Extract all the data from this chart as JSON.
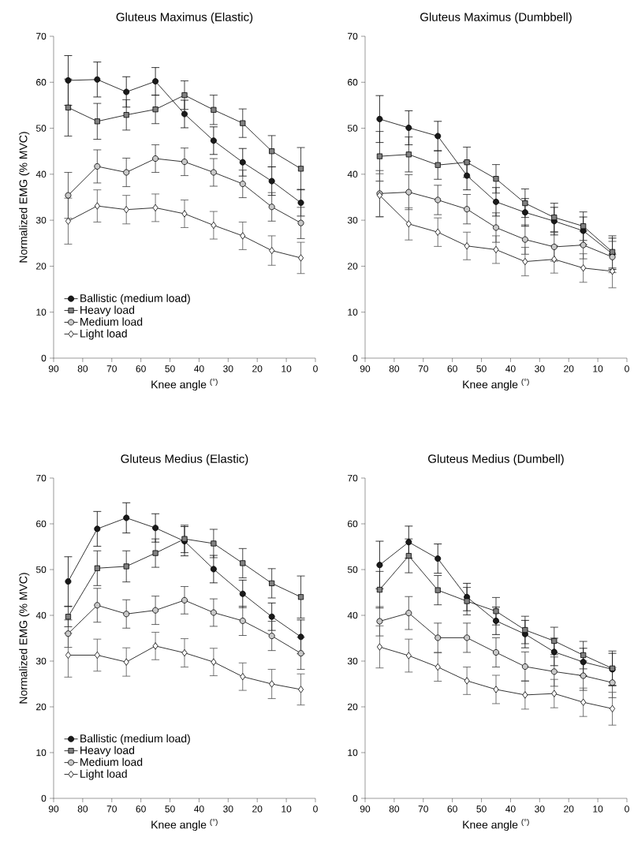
{
  "chart_data": [
    {
      "type": "line",
      "title": "Gluteus Maximus (Elastic)",
      "xlabel": "Knee angle $^{(°)}$",
      "ylabel": "Normalized EMG (% MVC)",
      "x": [
        85,
        75,
        65,
        55,
        45,
        35,
        25,
        15,
        5
      ],
      "xlim": [
        90,
        0
      ],
      "xticks": [
        90,
        80,
        70,
        60,
        50,
        40,
        30,
        20,
        10,
        0
      ],
      "ylim": [
        0,
        70
      ],
      "yticks": [
        0,
        10,
        20,
        30,
        40,
        50,
        60,
        70
      ],
      "legend": "bottom left",
      "series": [
        {
          "name": "Ballistic (medium load)",
          "color": "#1a1a1a",
          "marker": "circle",
          "values": [
            60.4,
            60.6,
            57.9,
            60.2,
            53.1,
            47.3,
            42.6,
            38.5,
            33.8
          ],
          "errors": [
            5.4,
            3.8,
            3.3,
            3.0,
            3.0,
            3.0,
            3.0,
            3.1,
            2.9
          ]
        },
        {
          "name": "Heavy load",
          "color": "#808080",
          "marker": "square",
          "values": [
            54.5,
            51.5,
            52.9,
            54.1,
            57.2,
            54.0,
            51.1,
            45.0,
            41.2
          ],
          "errors": [
            6.2,
            3.9,
            3.3,
            3.1,
            3.1,
            3.2,
            3.1,
            3.4,
            4.6
          ]
        },
        {
          "name": "Medium load",
          "color": "#c8c8c8",
          "marker": "circle",
          "values": [
            35.4,
            41.7,
            40.4,
            43.4,
            42.7,
            40.4,
            37.9,
            32.9,
            29.4
          ],
          "errors": [
            5.0,
            3.6,
            3.1,
            3.0,
            3.0,
            3.0,
            3.0,
            3.1,
            3.4
          ]
        },
        {
          "name": "Light load",
          "color": "#ffffff",
          "marker": "diamond",
          "values": [
            29.8,
            33.1,
            32.3,
            32.7,
            31.4,
            28.9,
            26.6,
            23.4,
            21.8
          ],
          "errors": [
            5.0,
            3.5,
            3.1,
            3.0,
            3.0,
            3.0,
            3.0,
            3.2,
            3.4
          ]
        }
      ]
    },
    {
      "type": "line",
      "title": "Gluteus Maximus (Dumbbell)",
      "xlabel": "Knee angle $^{(°)}$",
      "x": [
        85,
        75,
        65,
        55,
        45,
        35,
        25,
        15,
        5
      ],
      "xlim": [
        90,
        0
      ],
      "xticks": [
        90,
        80,
        70,
        60,
        50,
        40,
        30,
        20,
        10,
        0
      ],
      "ylim": [
        0,
        70
      ],
      "yticks": [
        0,
        10,
        20,
        30,
        40,
        50,
        60,
        70
      ],
      "series": [
        {
          "color": "#1a1a1a",
          "marker": "circle",
          "values": [
            52.0,
            50.1,
            48.3,
            39.7,
            34.0,
            31.7,
            29.8,
            27.7,
            22.7
          ],
          "errors": [
            5.1,
            3.7,
            3.2,
            3.1,
            3.1,
            3.0,
            3.0,
            3.0,
            3.4
          ]
        },
        {
          "color": "#808080",
          "marker": "square",
          "values": [
            43.9,
            44.3,
            42.0,
            42.6,
            39.0,
            33.7,
            30.6,
            28.7,
            23.1
          ],
          "errors": [
            5.4,
            3.8,
            3.1,
            3.3,
            3.1,
            3.1,
            3.1,
            3.1,
            3.5
          ]
        },
        {
          "color": "#c8c8c8",
          "marker": "circle",
          "values": [
            35.8,
            36.1,
            34.4,
            32.4,
            28.4,
            25.8,
            24.2,
            24.6,
            22.0
          ],
          "errors": [
            5.0,
            3.8,
            3.2,
            3.2,
            3.2,
            3.2,
            3.1,
            3.0,
            3.4
          ]
        },
        {
          "color": "#ffffff",
          "marker": "diamond",
          "values": [
            35.4,
            29.2,
            27.4,
            24.4,
            23.6,
            21.0,
            21.5,
            19.6,
            18.9
          ],
          "errors": [
            4.7,
            3.5,
            3.1,
            3.0,
            3.0,
            3.1,
            3.0,
            3.1,
            3.6
          ]
        }
      ]
    },
    {
      "type": "line",
      "title": "Gluteus Medius (Elastic)",
      "xlabel": "Knee angle $^{(°)}$",
      "ylabel": "Normalized EMG (% MVC)",
      "x": [
        85,
        75,
        65,
        55,
        45,
        35,
        25,
        15,
        5
      ],
      "xlim": [
        90,
        0
      ],
      "xticks": [
        90,
        80,
        70,
        60,
        50,
        40,
        30,
        20,
        10,
        0
      ],
      "ylim": [
        0,
        70
      ],
      "yticks": [
        0,
        10,
        20,
        30,
        40,
        50,
        60,
        70
      ],
      "legend": "bottom left",
      "series": [
        {
          "name": "Ballistic (medium load)",
          "color": "#1a1a1a",
          "marker": "circle",
          "values": [
            47.4,
            58.9,
            61.3,
            59.1,
            56.2,
            50.1,
            44.7,
            39.7,
            35.3
          ],
          "errors": [
            5.4,
            3.8,
            3.3,
            3.1,
            3.2,
            3.0,
            3.0,
            3.0,
            3.7
          ]
        },
        {
          "name": "Heavy load",
          "color": "#808080",
          "marker": "square",
          "values": [
            39.7,
            50.3,
            50.7,
            53.6,
            56.7,
            55.7,
            51.4,
            47.0,
            44.0
          ],
          "errors": [
            2.2,
            3.8,
            3.4,
            3.1,
            3.0,
            3.1,
            3.2,
            3.2,
            4.6
          ]
        },
        {
          "name": "Medium load",
          "color": "#c8c8c8",
          "marker": "circle",
          "values": [
            36.0,
            42.2,
            40.3,
            41.1,
            43.3,
            40.6,
            38.8,
            35.5,
            31.7
          ],
          "errors": [
            3.0,
            3.7,
            3.1,
            3.1,
            3.0,
            3.0,
            3.2,
            3.2,
            3.5
          ]
        },
        {
          "name": "Light load",
          "color": "#ffffff",
          "marker": "diamond",
          "values": [
            31.3,
            31.3,
            29.8,
            33.3,
            31.8,
            29.8,
            26.6,
            25.0,
            23.8
          ],
          "errors": [
            4.8,
            3.5,
            3.1,
            3.0,
            3.1,
            3.0,
            3.0,
            3.2,
            3.4
          ]
        }
      ]
    },
    {
      "type": "line",
      "title": "Gluteus Medius (Dumbell)",
      "xlabel": "Knee angle $^{(°)}$",
      "x": [
        85,
        75,
        65,
        55,
        45,
        35,
        25,
        15,
        5
      ],
      "xlim": [
        90,
        0
      ],
      "xticks": [
        90,
        80,
        70,
        60,
        50,
        40,
        30,
        20,
        10,
        0
      ],
      "ylim": [
        0,
        70
      ],
      "yticks": [
        0,
        10,
        20,
        30,
        40,
        50,
        60,
        70
      ],
      "series": [
        {
          "color": "#1a1a1a",
          "marker": "circle",
          "values": [
            51.0,
            56.0,
            52.4,
            44.0,
            38.8,
            35.9,
            32.0,
            29.8,
            28.2
          ],
          "errors": [
            5.2,
            3.5,
            3.2,
            3.0,
            3.0,
            3.0,
            3.0,
            3.0,
            3.5
          ]
        },
        {
          "color": "#808080",
          "marker": "square",
          "values": [
            45.6,
            53.0,
            45.5,
            43.1,
            40.9,
            36.8,
            34.4,
            31.3,
            28.4
          ],
          "errors": [
            4.0,
            3.7,
            3.2,
            3.0,
            3.0,
            3.0,
            3.0,
            3.0,
            3.8
          ]
        },
        {
          "color": "#c8c8c8",
          "marker": "circle",
          "values": [
            38.7,
            40.5,
            35.1,
            35.1,
            31.9,
            28.8,
            27.7,
            26.8,
            25.3
          ],
          "errors": [
            3.2,
            3.6,
            3.2,
            3.2,
            3.2,
            3.2,
            3.2,
            3.2,
            3.3
          ]
        },
        {
          "color": "#ffffff",
          "marker": "diamond",
          "values": [
            33.1,
            31.2,
            28.7,
            25.7,
            23.8,
            22.6,
            22.9,
            21.0,
            19.6
          ],
          "errors": [
            4.6,
            3.6,
            3.1,
            3.0,
            3.1,
            3.1,
            3.1,
            3.1,
            3.6
          ]
        }
      ]
    }
  ]
}
